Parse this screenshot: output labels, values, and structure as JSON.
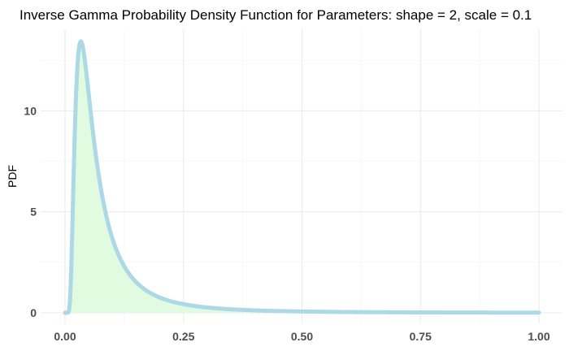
{
  "chart_data": {
    "type": "area",
    "title": "Inverse Gamma Probability Density Function for Parameters: shape = 2, scale = 0.1",
    "xlabel": "",
    "ylabel": "PDF",
    "xlim": [
      0,
      1
    ],
    "ylim": [
      0,
      13.53
    ],
    "x_ticks": [
      "0.00",
      "0.25",
      "0.50",
      "0.75",
      "1.00"
    ],
    "y_ticks": [
      "0",
      "5",
      "10"
    ],
    "grid": true,
    "series": [
      {
        "distribution": "inverse gamma",
        "shape": 2,
        "scale": 0.1,
        "x": [
          0.0,
          0.005,
          0.01,
          0.015,
          0.02,
          0.025,
          0.03,
          0.0333,
          0.035,
          0.04,
          0.045,
          0.05,
          0.06,
          0.07,
          0.08,
          0.09,
          0.1,
          0.12,
          0.14,
          0.16,
          0.18,
          0.2,
          0.25,
          0.3,
          0.35,
          0.4,
          0.5,
          0.6,
          0.7,
          0.8,
          0.9,
          1.0
        ],
        "y": [
          0.0,
          0.0,
          0.45,
          3.76,
          8.42,
          11.72,
          13.1,
          13.44,
          13.39,
          12.83,
          11.85,
          10.83,
          8.76,
          7.06,
          5.75,
          4.7,
          3.68,
          2.53,
          1.78,
          1.28,
          0.94,
          0.76,
          0.43,
          0.27,
          0.17,
          0.12,
          0.066,
          0.039,
          0.025,
          0.017,
          0.012,
          0.0086
        ]
      }
    ],
    "colors": {
      "line": "#add8e6",
      "fill": "#e0fbe0",
      "grid": "#ebebeb",
      "tick_text": "#4d4d4d"
    }
  }
}
